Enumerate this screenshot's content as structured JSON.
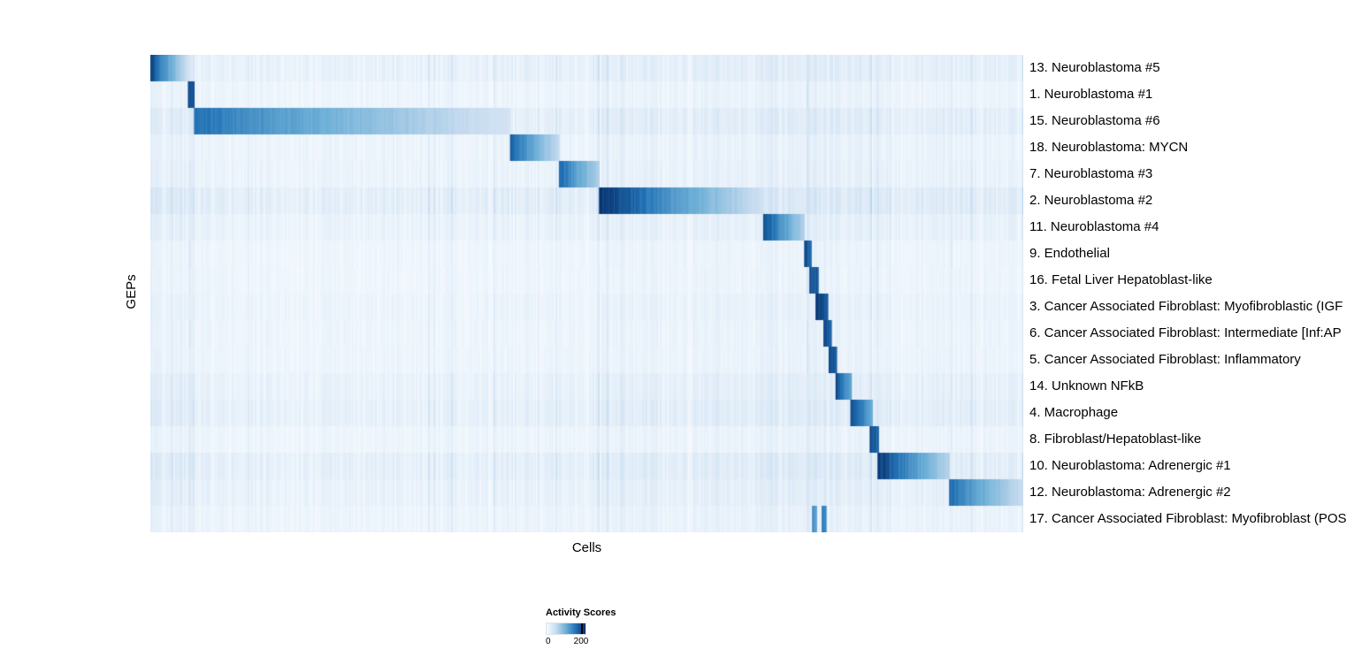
{
  "figure": {
    "background": "#ffffff"
  },
  "chart_data": {
    "type": "heatmap",
    "title": "",
    "xlabel": "Cells",
    "ylabel": "GEPs",
    "legend": {
      "title": "Activity Scores",
      "min_label": "0",
      "max_label": "200",
      "min": 0,
      "max": 200
    },
    "colormap_stops": [
      [
        0.0,
        "#f7fbff"
      ],
      [
        0.25,
        "#c6dbef"
      ],
      [
        0.5,
        "#6baed6"
      ],
      [
        0.75,
        "#2171b5"
      ],
      [
        1.0,
        "#08306b"
      ]
    ],
    "noise_seed": 42,
    "noise_bands": [
      {
        "start": 0.0,
        "end": 0.05,
        "boost": 0.045
      },
      {
        "start": 0.05,
        "end": 0.42,
        "boost": 0.012
      },
      {
        "start": 0.42,
        "end": 0.515,
        "boost": 0.018
      },
      {
        "start": 0.515,
        "end": 0.7,
        "boost": 0.028
      },
      {
        "start": 0.7,
        "end": 0.75,
        "boost": 0.04
      },
      {
        "start": 0.75,
        "end": 0.8,
        "boost": 0.05
      },
      {
        "start": 0.8,
        "end": 0.845,
        "boost": 0.038
      },
      {
        "start": 0.845,
        "end": 0.915,
        "boost": 0.022
      },
      {
        "start": 0.915,
        "end": 1.0,
        "boost": 0.025
      }
    ],
    "accent_columns": [
      {
        "x": 0.044,
        "t": 0.22
      },
      {
        "x": 0.752,
        "t": 0.26
      },
      {
        "x": 0.772,
        "t": 0.2
      },
      {
        "x": 0.832,
        "t": 0.2
      },
      {
        "x": 0.917,
        "t": 0.18
      }
    ],
    "rows": [
      {
        "label": "13. Neuroblastoma #5",
        "noise_scale": 1.4,
        "blocks": [
          {
            "start": 0.0,
            "end": 0.046,
            "peak": 0.95,
            "fade": 0.15
          }
        ]
      },
      {
        "label": "1. Neuroblastoma #1",
        "noise_scale": 0.9,
        "blocks": [
          {
            "start": 0.043,
            "end": 0.05,
            "peak": 0.9,
            "fade": 0.85
          }
        ]
      },
      {
        "label": "15. Neuroblastoma #6",
        "noise_scale": 1.5,
        "blocks": [
          {
            "start": 0.05,
            "end": 0.412,
            "peak": 0.75,
            "fade": 0.18
          }
        ]
      },
      {
        "label": "18. Neuroblastoma: MYCN",
        "noise_scale": 1.0,
        "blocks": [
          {
            "start": 0.412,
            "end": 0.468,
            "peak": 0.8,
            "fade": 0.25
          }
        ]
      },
      {
        "label": "7. Neuroblastoma #3",
        "noise_scale": 1.1,
        "blocks": [
          {
            "start": 0.468,
            "end": 0.514,
            "peak": 0.8,
            "fade": 0.3
          }
        ]
      },
      {
        "label": "2. Neuroblastoma #2",
        "noise_scale": 1.8,
        "blocks": [
          {
            "start": 0.514,
            "end": 0.702,
            "peak": 1.0,
            "fade": 0.2
          }
        ]
      },
      {
        "label": "11. Neuroblastoma #4",
        "noise_scale": 1.2,
        "blocks": [
          {
            "start": 0.702,
            "end": 0.749,
            "peak": 0.9,
            "fade": 0.3
          }
        ]
      },
      {
        "label": "9. Endothelial",
        "noise_scale": 0.8,
        "blocks": [
          {
            "start": 0.749,
            "end": 0.757,
            "peak": 0.9,
            "fade": 0.8
          }
        ]
      },
      {
        "label": "16. Fetal Liver Hepatoblast-like",
        "noise_scale": 0.8,
        "blocks": [
          {
            "start": 0.755,
            "end": 0.765,
            "peak": 0.9,
            "fade": 0.8
          }
        ]
      },
      {
        "label": "3. Cancer Associated Fibroblast: Myofibroblastic (IGF",
        "noise_scale": 1.0,
        "blocks": [
          {
            "start": 0.762,
            "end": 0.776,
            "peak": 0.95,
            "fade": 0.85
          }
        ]
      },
      {
        "label": "6. Cancer Associated Fibroblast: Intermediate [Inf:AP",
        "noise_scale": 0.9,
        "blocks": [
          {
            "start": 0.771,
            "end": 0.78,
            "peak": 0.9,
            "fade": 0.8
          }
        ]
      },
      {
        "label": "5. Cancer Associated Fibroblast: Inflammatory",
        "noise_scale": 0.9,
        "blocks": [
          {
            "start": 0.777,
            "end": 0.786,
            "peak": 0.9,
            "fade": 0.8
          }
        ]
      },
      {
        "label": "14. Unknown NFkB",
        "noise_scale": 1.3,
        "blocks": [
          {
            "start": 0.785,
            "end": 0.803,
            "peak": 0.92,
            "fade": 0.5
          }
        ]
      },
      {
        "label": "4. Macrophage",
        "noise_scale": 1.5,
        "blocks": [
          {
            "start": 0.802,
            "end": 0.827,
            "peak": 0.92,
            "fade": 0.5
          }
        ]
      },
      {
        "label": "8. Fibroblast/Hepatoblast-like",
        "noise_scale": 0.9,
        "blocks": [
          {
            "start": 0.824,
            "end": 0.834,
            "peak": 0.9,
            "fade": 0.8
          }
        ]
      },
      {
        "label": "10. Neuroblastoma: Adrenergic #1",
        "noise_scale": 1.6,
        "blocks": [
          {
            "start": 0.833,
            "end": 0.915,
            "peak": 1.0,
            "fade": 0.28
          }
        ]
      },
      {
        "label": "12. Neuroblastoma: Adrenergic #2",
        "noise_scale": 1.3,
        "blocks": [
          {
            "start": 0.915,
            "end": 1.0,
            "peak": 0.78,
            "fade": 0.22
          }
        ]
      },
      {
        "label": "17. Cancer Associated Fibroblast: Myofibroblast (POS",
        "noise_scale": 1.0,
        "blocks": [
          {
            "start": 0.758,
            "end": 0.763,
            "peak": 0.65,
            "fade": 0.55
          },
          {
            "start": 0.769,
            "end": 0.774,
            "peak": 0.7,
            "fade": 0.6
          }
        ]
      }
    ]
  }
}
